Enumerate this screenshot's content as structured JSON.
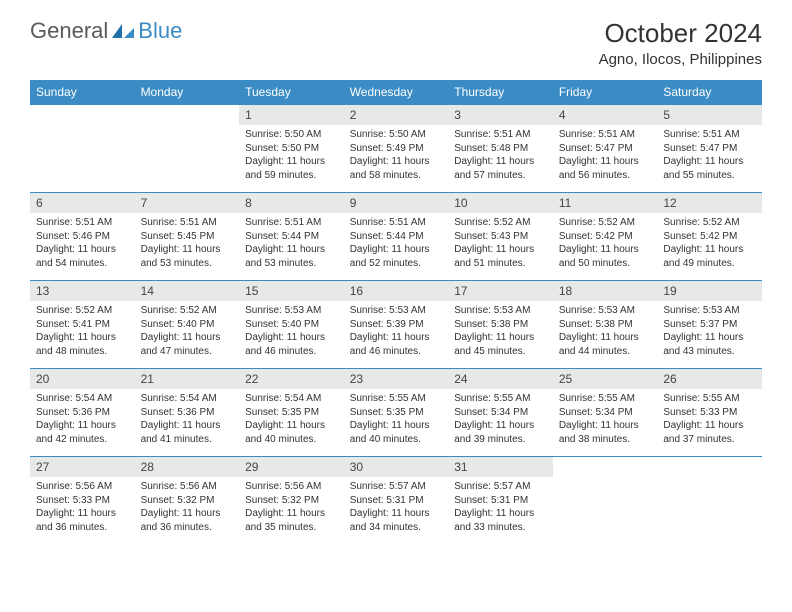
{
  "logo": {
    "text1": "General",
    "text2": "Blue"
  },
  "header": {
    "month_title": "October 2024",
    "location": "Agno, Ilocos, Philippines"
  },
  "colors": {
    "header_bg": "#3b8bc4",
    "header_fg": "#ffffff",
    "daynum_bg": "#e8e8e8",
    "border": "#3b8bc4",
    "text": "#333333",
    "logo_gray": "#5a5a5a",
    "logo_blue": "#3b8bc4"
  },
  "typography": {
    "title_size": 26,
    "location_size": 15,
    "dayhead_size": 12,
    "daynum_size": 12,
    "body_size": 10
  },
  "days_of_week": [
    "Sunday",
    "Monday",
    "Tuesday",
    "Wednesday",
    "Thursday",
    "Friday",
    "Saturday"
  ],
  "weeks": [
    [
      null,
      null,
      {
        "n": "1",
        "sr": "Sunrise: 5:50 AM",
        "ss": "Sunset: 5:50 PM",
        "d1": "Daylight: 11 hours",
        "d2": "and 59 minutes."
      },
      {
        "n": "2",
        "sr": "Sunrise: 5:50 AM",
        "ss": "Sunset: 5:49 PM",
        "d1": "Daylight: 11 hours",
        "d2": "and 58 minutes."
      },
      {
        "n": "3",
        "sr": "Sunrise: 5:51 AM",
        "ss": "Sunset: 5:48 PM",
        "d1": "Daylight: 11 hours",
        "d2": "and 57 minutes."
      },
      {
        "n": "4",
        "sr": "Sunrise: 5:51 AM",
        "ss": "Sunset: 5:47 PM",
        "d1": "Daylight: 11 hours",
        "d2": "and 56 minutes."
      },
      {
        "n": "5",
        "sr": "Sunrise: 5:51 AM",
        "ss": "Sunset: 5:47 PM",
        "d1": "Daylight: 11 hours",
        "d2": "and 55 minutes."
      }
    ],
    [
      {
        "n": "6",
        "sr": "Sunrise: 5:51 AM",
        "ss": "Sunset: 5:46 PM",
        "d1": "Daylight: 11 hours",
        "d2": "and 54 minutes."
      },
      {
        "n": "7",
        "sr": "Sunrise: 5:51 AM",
        "ss": "Sunset: 5:45 PM",
        "d1": "Daylight: 11 hours",
        "d2": "and 53 minutes."
      },
      {
        "n": "8",
        "sr": "Sunrise: 5:51 AM",
        "ss": "Sunset: 5:44 PM",
        "d1": "Daylight: 11 hours",
        "d2": "and 53 minutes."
      },
      {
        "n": "9",
        "sr": "Sunrise: 5:51 AM",
        "ss": "Sunset: 5:44 PM",
        "d1": "Daylight: 11 hours",
        "d2": "and 52 minutes."
      },
      {
        "n": "10",
        "sr": "Sunrise: 5:52 AM",
        "ss": "Sunset: 5:43 PM",
        "d1": "Daylight: 11 hours",
        "d2": "and 51 minutes."
      },
      {
        "n": "11",
        "sr": "Sunrise: 5:52 AM",
        "ss": "Sunset: 5:42 PM",
        "d1": "Daylight: 11 hours",
        "d2": "and 50 minutes."
      },
      {
        "n": "12",
        "sr": "Sunrise: 5:52 AM",
        "ss": "Sunset: 5:42 PM",
        "d1": "Daylight: 11 hours",
        "d2": "and 49 minutes."
      }
    ],
    [
      {
        "n": "13",
        "sr": "Sunrise: 5:52 AM",
        "ss": "Sunset: 5:41 PM",
        "d1": "Daylight: 11 hours",
        "d2": "and 48 minutes."
      },
      {
        "n": "14",
        "sr": "Sunrise: 5:52 AM",
        "ss": "Sunset: 5:40 PM",
        "d1": "Daylight: 11 hours",
        "d2": "and 47 minutes."
      },
      {
        "n": "15",
        "sr": "Sunrise: 5:53 AM",
        "ss": "Sunset: 5:40 PM",
        "d1": "Daylight: 11 hours",
        "d2": "and 46 minutes."
      },
      {
        "n": "16",
        "sr": "Sunrise: 5:53 AM",
        "ss": "Sunset: 5:39 PM",
        "d1": "Daylight: 11 hours",
        "d2": "and 46 minutes."
      },
      {
        "n": "17",
        "sr": "Sunrise: 5:53 AM",
        "ss": "Sunset: 5:38 PM",
        "d1": "Daylight: 11 hours",
        "d2": "and 45 minutes."
      },
      {
        "n": "18",
        "sr": "Sunrise: 5:53 AM",
        "ss": "Sunset: 5:38 PM",
        "d1": "Daylight: 11 hours",
        "d2": "and 44 minutes."
      },
      {
        "n": "19",
        "sr": "Sunrise: 5:53 AM",
        "ss": "Sunset: 5:37 PM",
        "d1": "Daylight: 11 hours",
        "d2": "and 43 minutes."
      }
    ],
    [
      {
        "n": "20",
        "sr": "Sunrise: 5:54 AM",
        "ss": "Sunset: 5:36 PM",
        "d1": "Daylight: 11 hours",
        "d2": "and 42 minutes."
      },
      {
        "n": "21",
        "sr": "Sunrise: 5:54 AM",
        "ss": "Sunset: 5:36 PM",
        "d1": "Daylight: 11 hours",
        "d2": "and 41 minutes."
      },
      {
        "n": "22",
        "sr": "Sunrise: 5:54 AM",
        "ss": "Sunset: 5:35 PM",
        "d1": "Daylight: 11 hours",
        "d2": "and 40 minutes."
      },
      {
        "n": "23",
        "sr": "Sunrise: 5:55 AM",
        "ss": "Sunset: 5:35 PM",
        "d1": "Daylight: 11 hours",
        "d2": "and 40 minutes."
      },
      {
        "n": "24",
        "sr": "Sunrise: 5:55 AM",
        "ss": "Sunset: 5:34 PM",
        "d1": "Daylight: 11 hours",
        "d2": "and 39 minutes."
      },
      {
        "n": "25",
        "sr": "Sunrise: 5:55 AM",
        "ss": "Sunset: 5:34 PM",
        "d1": "Daylight: 11 hours",
        "d2": "and 38 minutes."
      },
      {
        "n": "26",
        "sr": "Sunrise: 5:55 AM",
        "ss": "Sunset: 5:33 PM",
        "d1": "Daylight: 11 hours",
        "d2": "and 37 minutes."
      }
    ],
    [
      {
        "n": "27",
        "sr": "Sunrise: 5:56 AM",
        "ss": "Sunset: 5:33 PM",
        "d1": "Daylight: 11 hours",
        "d2": "and 36 minutes."
      },
      {
        "n": "28",
        "sr": "Sunrise: 5:56 AM",
        "ss": "Sunset: 5:32 PM",
        "d1": "Daylight: 11 hours",
        "d2": "and 36 minutes."
      },
      {
        "n": "29",
        "sr": "Sunrise: 5:56 AM",
        "ss": "Sunset: 5:32 PM",
        "d1": "Daylight: 11 hours",
        "d2": "and 35 minutes."
      },
      {
        "n": "30",
        "sr": "Sunrise: 5:57 AM",
        "ss": "Sunset: 5:31 PM",
        "d1": "Daylight: 11 hours",
        "d2": "and 34 minutes."
      },
      {
        "n": "31",
        "sr": "Sunrise: 5:57 AM",
        "ss": "Sunset: 5:31 PM",
        "d1": "Daylight: 11 hours",
        "d2": "and 33 minutes."
      },
      null,
      null
    ]
  ]
}
